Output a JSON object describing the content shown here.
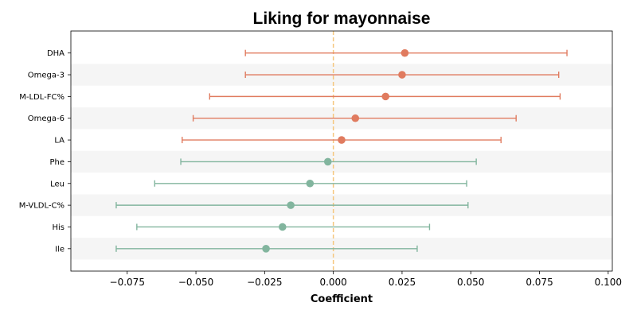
{
  "chart_data": {
    "type": "forest",
    "title": "Liking for mayonnaise",
    "xlabel": "Coefficient",
    "ylabel": "",
    "xlim": [
      -0.0955,
      0.1015
    ],
    "xticks": [
      -0.075,
      -0.05,
      -0.025,
      0.0,
      0.025,
      0.05,
      0.075,
      0.1
    ],
    "xtick_labels": [
      "−0.075",
      "−0.050",
      "−0.025",
      "0.000",
      "0.025",
      "0.050",
      "0.075",
      "0.100"
    ],
    "reference_line": 0.0,
    "colors": {
      "positive": "#e07b5f",
      "negative": "#82b59e",
      "reference": "#f5c77e",
      "band": "#f5f5f5"
    },
    "rows": [
      {
        "label": "DHA",
        "coef": 0.026,
        "low": -0.032,
        "high": 0.085
      },
      {
        "label": "Omega-3",
        "coef": 0.025,
        "low": -0.032,
        "high": 0.082
      },
      {
        "label": "M-LDL-FC%",
        "coef": 0.019,
        "low": -0.045,
        "high": 0.0825
      },
      {
        "label": "Omega-6",
        "coef": 0.008,
        "low": -0.051,
        "high": 0.0665
      },
      {
        "label": "LA",
        "coef": 0.003,
        "low": -0.055,
        "high": 0.061
      },
      {
        "label": "Phe",
        "coef": -0.002,
        "low": -0.0555,
        "high": 0.052
      },
      {
        "label": "Leu",
        "coef": -0.0085,
        "low": -0.065,
        "high": 0.0485
      },
      {
        "label": "M-VLDL-C%",
        "coef": -0.0155,
        "low": -0.079,
        "high": 0.049
      },
      {
        "label": "His",
        "coef": -0.0185,
        "low": -0.0715,
        "high": 0.035
      },
      {
        "label": "Ile",
        "coef": -0.0245,
        "low": -0.079,
        "high": 0.0305
      }
    ]
  }
}
